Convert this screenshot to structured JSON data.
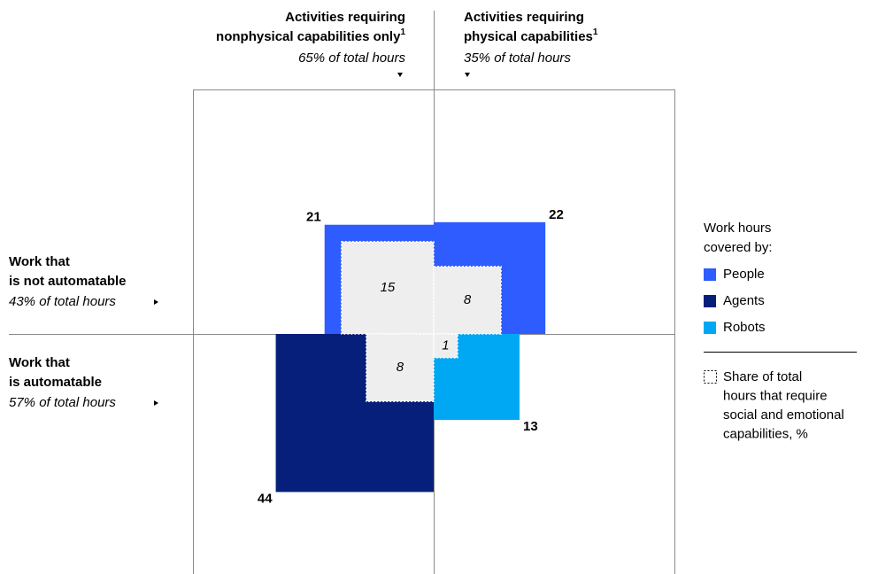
{
  "chart_data": {
    "type": "quadrant-squares",
    "columns": [
      {
        "title_lines": [
          "Activities requiring",
          "nonphysical capabilities only"
        ],
        "footnote": "1",
        "share": "65% of total hours"
      },
      {
        "title_lines": [
          "Activities requiring",
          "physical capabilities"
        ],
        "footnote": "1",
        "share": "35% of total hours"
      }
    ],
    "rows": [
      {
        "title_lines": [
          "Work that",
          "is not automatable"
        ],
        "share": "43% of total hours"
      },
      {
        "title_lines": [
          "Work that",
          "is automatable"
        ],
        "share": "57% of total hours"
      }
    ],
    "series": [
      {
        "name": "People",
        "color": "#2f5cff",
        "values": [
          21,
          22
        ],
        "social_emotional": [
          15,
          8
        ]
      },
      {
        "name": "Agents",
        "color": "#061f7a",
        "values": [
          44,
          null
        ],
        "social_emotional": [
          8,
          null
        ]
      },
      {
        "name": "Robots",
        "color": "#00a8f3",
        "values": [
          null,
          13
        ],
        "social_emotional": [
          null,
          1
        ]
      }
    ],
    "social_color": "#eeeeee",
    "legend": {
      "title_lines": [
        "Work hours",
        "covered by:"
      ],
      "note_lines": [
        "Share of total",
        "hours that require",
        "social and emotional",
        "capabilities, %"
      ]
    }
  }
}
